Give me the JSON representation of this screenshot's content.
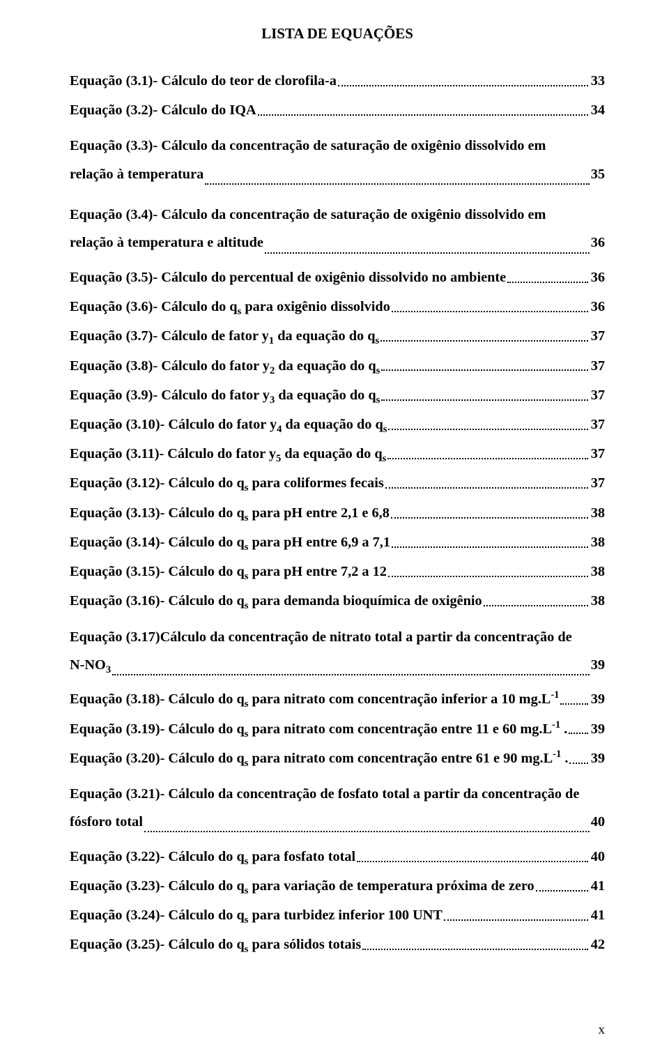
{
  "title": "LISTA DE EQUAÇÕES",
  "footer_page": "x",
  "colors": {
    "text": "#000000",
    "background": "#ffffff"
  },
  "typography": {
    "family": "Times New Roman",
    "title_pt": 21,
    "body_pt": 20.3,
    "weight": "bold"
  },
  "entries": [
    {
      "label": "Equação (3.1)- Cálculo do teor de clorofila-a",
      "page": "33"
    },
    {
      "label": "Equação (3.2)- Cálculo do IQA",
      "page": "34"
    },
    {
      "top": "Equação (3.3)- Cálculo da concentração de saturação de oxigênio dissolvido em",
      "last": "relação à temperatura",
      "page": "35"
    },
    {
      "top": "Equação (3.4)- Cálculo da concentração de saturação de oxigênio dissolvido em",
      "last": "relação à temperatura e altitude",
      "page": "36"
    },
    {
      "label": "Equação (3.5)- Cálculo do percentual de oxigênio dissolvido no ambiente",
      "page": "36"
    },
    {
      "label_html": "Equação (3.6)- Cálculo do q<sub>s</sub> para oxigênio dissolvido",
      "page": "36"
    },
    {
      "label_html": "Equação (3.7)- Cálculo de fator y<sub>1</sub> da equação do q<sub>s</sub>",
      "page": "37"
    },
    {
      "label_html": "Equação (3.8)- Cálculo do fator y<sub>2</sub> da equação do q<sub>s</sub>",
      "page": "37"
    },
    {
      "label_html": "Equação (3.9)- Cálculo do fator y<sub>3</sub> da equação do q<sub>s</sub>",
      "page": "37"
    },
    {
      "label_html": "Equação (3.10)- Cálculo do fator y<sub>4</sub> da equação do q<sub>s</sub>",
      "page": "37"
    },
    {
      "label_html": "Equação (3.11)- Cálculo do fator y<sub>5</sub> da equação do q<sub>s</sub>",
      "page": "37"
    },
    {
      "label_html": "Equação (3.12)- Cálculo do q<sub>s</sub> para coliformes fecais",
      "page": "37"
    },
    {
      "label_html": "Equação (3.13)- Cálculo do q<sub>s</sub> para pH entre 2,1 e 6,8",
      "page": "38"
    },
    {
      "label_html": "Equação (3.14)- Cálculo do q<sub>s</sub> para pH entre 6,9 a 7,1",
      "page": "38"
    },
    {
      "label_html": "Equação (3.15)- Cálculo do q<sub>s</sub> para pH entre 7,2 a 12",
      "page": "38"
    },
    {
      "label_html": "Equação (3.16)- Cálculo do q<sub>s</sub> para demanda bioquímica de oxigênio",
      "page": "38"
    },
    {
      "top": "Equação (3.17)Cálculo da concentração de nitrato total a partir da concentração de",
      "last_html": "N-NO<sub>3</sub>",
      "page": "39"
    },
    {
      "label_html": "Equação (3.18)- Cálculo do q<sub>s</sub> para nitrato com concentração inferior a 10 mg.L<sup>-1</sup>",
      "page": "39"
    },
    {
      "label_html": "Equação (3.19)- Cálculo do q<sub>s</sub> para nitrato com concentração entre 11 e 60 mg.L<sup>-1</sup> .",
      "page": "39"
    },
    {
      "label_html": "Equação (3.20)- Cálculo do q<sub>s</sub> para nitrato com concentração entre 61 e 90 mg.L<sup>-1</sup> .",
      "page": "39"
    },
    {
      "top": "Equação (3.21)- Cálculo da concentração de fosfato total a partir da concentração de",
      "last": "fósforo total",
      "page": "40"
    },
    {
      "label_html": "Equação (3.22)- Cálculo do q<sub>s</sub> para fosfato total",
      "page": "40"
    },
    {
      "label_html": "Equação (3.23)- Cálculo do q<sub>s</sub> para variação de temperatura próxima de zero",
      "page": "41"
    },
    {
      "label_html": "Equação (3.24)- Cálculo do q<sub>s</sub> para turbidez inferior 100 UNT",
      "page": "41"
    },
    {
      "label_html": "Equação (3.25)- Cálculo do q<sub>s</sub> para sólidos totais",
      "page": "42"
    }
  ]
}
